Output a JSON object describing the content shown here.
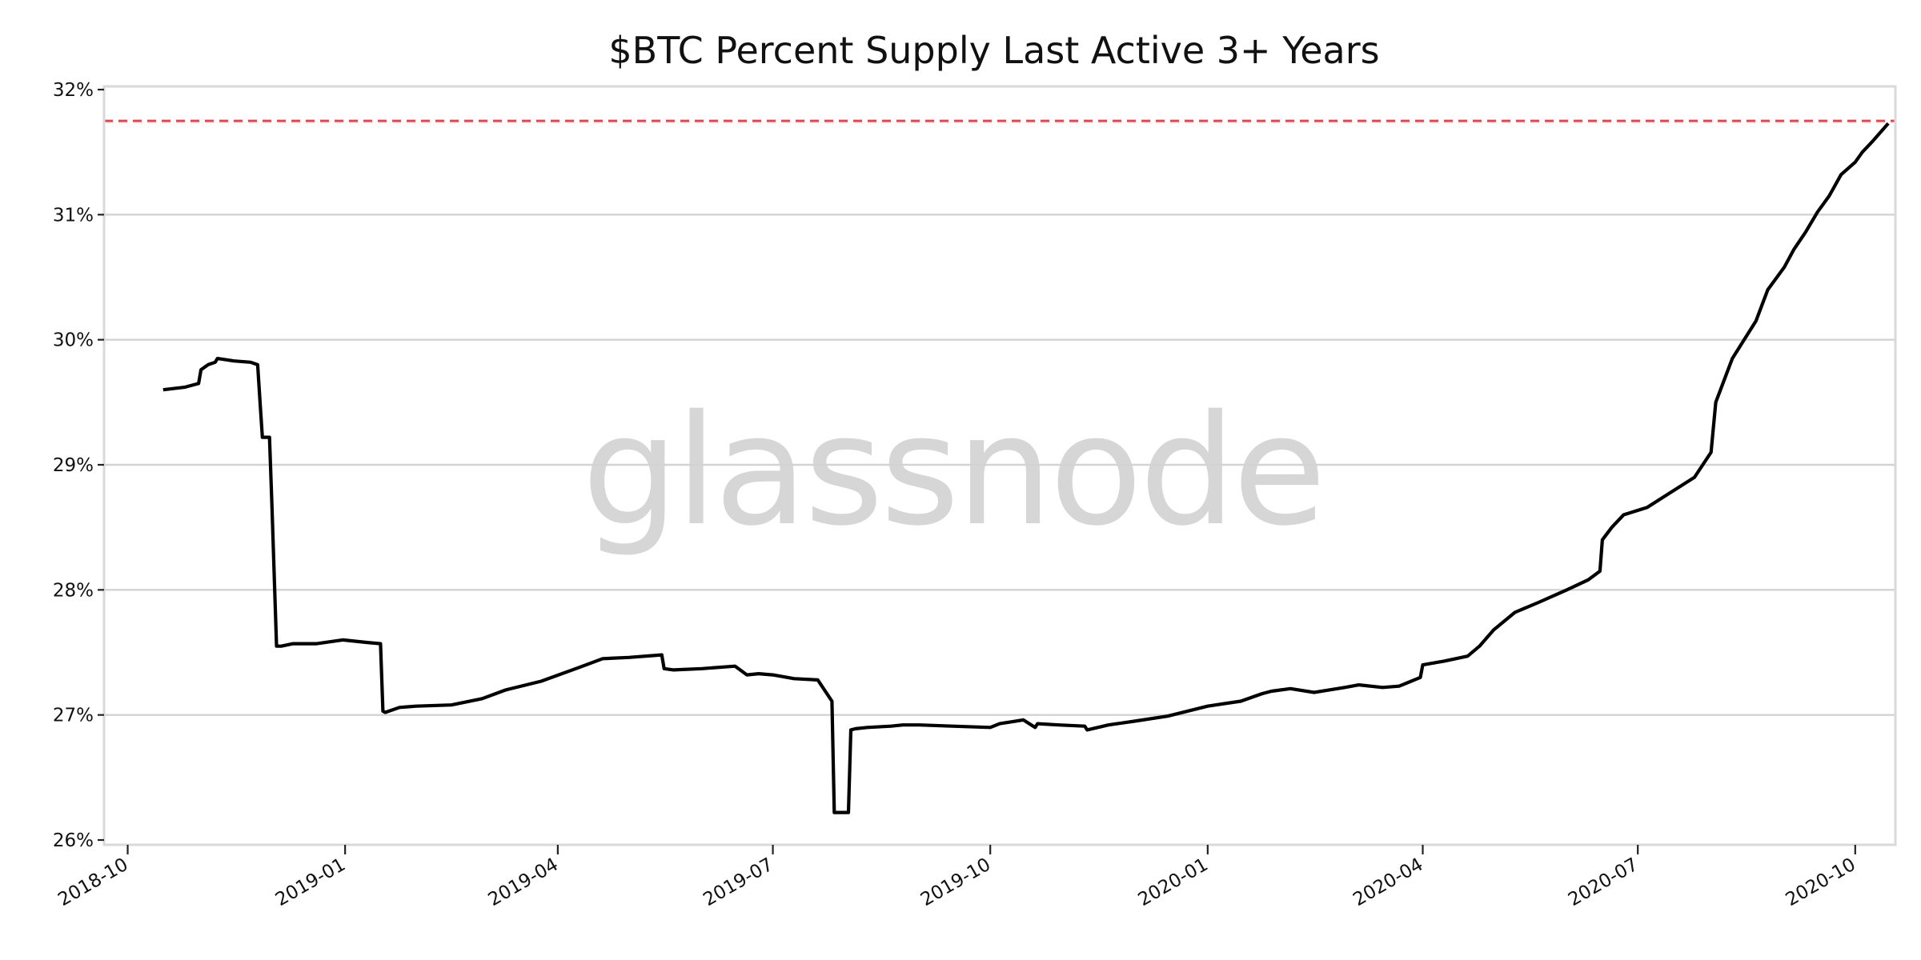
{
  "chart_data": {
    "type": "line",
    "title": "$BTC Percent Supply Last Active 3+ Years",
    "xlabel": "",
    "ylabel": "",
    "watermark": "glassnode",
    "x_type": "date",
    "xlim": [
      "2018-09-21",
      "2020-10-18"
    ],
    "ylim": [
      26,
      32
    ],
    "yticks": [
      26,
      27,
      28,
      29,
      30,
      31,
      32
    ],
    "ytick_labels": [
      "26%",
      "27%",
      "28%",
      "29%",
      "30%",
      "31%",
      "32%"
    ],
    "xticks": [
      "2018-10-01",
      "2019-01-01",
      "2019-04-01",
      "2019-07-01",
      "2019-10-01",
      "2020-01-01",
      "2020-04-01",
      "2020-07-01",
      "2020-10-01"
    ],
    "xtick_labels": [
      "2018-10",
      "2019-01",
      "2019-04",
      "2019-07",
      "2019-10",
      "2020-01",
      "2020-04",
      "2020-07",
      "2020-10"
    ],
    "grid": "horizontal",
    "reference_line": {
      "y": 31.75,
      "color": "#e8434a",
      "style": "dashed"
    },
    "line_color": "#000000",
    "series": [
      {
        "x": [
          "2018-10-16",
          "2018-10-25",
          "2018-10-31",
          "2018-11-01",
          "2018-11-04",
          "2018-11-07",
          "2018-11-08",
          "2018-11-15",
          "2018-11-22",
          "2018-11-25",
          "2018-11-26",
          "2018-11-27",
          "2018-11-30",
          "2018-12-01",
          "2018-12-03",
          "2018-12-05",
          "2018-12-10",
          "2018-12-20",
          "2018-12-31",
          "2019-01-10",
          "2019-01-16",
          "2019-01-17",
          "2019-01-18",
          "2019-01-24",
          "2019-01-31",
          "2019-02-15",
          "2019-02-28",
          "2019-03-10",
          "2019-03-25",
          "2019-04-10",
          "2019-04-20",
          "2019-05-01",
          "2019-05-15",
          "2019-05-16",
          "2019-05-20",
          "2019-06-01",
          "2019-06-15",
          "2019-06-20",
          "2019-06-25",
          "2019-07-01",
          "2019-07-10",
          "2019-07-20",
          "2019-07-26",
          "2019-07-27",
          "2019-08-02",
          "2019-08-03",
          "2019-08-05",
          "2019-08-10",
          "2019-08-20",
          "2019-08-25",
          "2019-09-01",
          "2019-09-15",
          "2019-10-01",
          "2019-10-05",
          "2019-10-15",
          "2019-10-20",
          "2019-10-21",
          "2019-10-30",
          "2019-11-10",
          "2019-11-11",
          "2019-11-20",
          "2019-12-01",
          "2019-12-15",
          "2020-01-01",
          "2020-01-15",
          "2020-01-24",
          "2020-01-28",
          "2020-02-05",
          "2020-02-15",
          "2020-02-28",
          "2020-03-05",
          "2020-03-15",
          "2020-03-22",
          "2020-03-31",
          "2020-04-01",
          "2020-04-10",
          "2020-04-20",
          "2020-04-25",
          "2020-05-01",
          "2020-05-10",
          "2020-05-20",
          "2020-06-01",
          "2020-06-10",
          "2020-06-15",
          "2020-06-16",
          "2020-06-20",
          "2020-06-25",
          "2020-07-05",
          "2020-07-15",
          "2020-07-25",
          "2020-08-01",
          "2020-08-03",
          "2020-08-05",
          "2020-08-10",
          "2020-08-15",
          "2020-08-20",
          "2020-08-25",
          "2020-09-01",
          "2020-09-05",
          "2020-09-10",
          "2020-09-15",
          "2020-09-20",
          "2020-09-25",
          "2020-10-01",
          "2020-10-04",
          "2020-10-08",
          "2020-10-15"
        ],
        "y": [
          29.6,
          29.62,
          29.65,
          29.76,
          29.8,
          29.82,
          29.85,
          29.83,
          29.82,
          29.8,
          29.5,
          29.22,
          29.22,
          28.7,
          27.55,
          27.55,
          27.57,
          27.57,
          27.6,
          27.58,
          27.57,
          27.03,
          27.02,
          27.06,
          27.07,
          27.08,
          27.13,
          27.2,
          27.27,
          27.38,
          27.45,
          27.46,
          27.48,
          27.37,
          27.36,
          27.37,
          27.39,
          27.32,
          27.33,
          27.32,
          27.29,
          27.28,
          27.11,
          26.22,
          26.22,
          26.88,
          26.89,
          26.9,
          26.91,
          26.92,
          26.92,
          26.91,
          26.9,
          26.93,
          26.96,
          26.9,
          26.93,
          26.92,
          26.91,
          26.88,
          26.92,
          26.95,
          26.99,
          27.07,
          27.11,
          27.17,
          27.19,
          27.21,
          27.18,
          27.22,
          27.24,
          27.22,
          27.23,
          27.3,
          27.4,
          27.43,
          27.47,
          27.55,
          27.68,
          27.82,
          27.9,
          28.0,
          28.08,
          28.15,
          28.4,
          28.5,
          28.6,
          28.66,
          28.78,
          28.9,
          29.1,
          29.5,
          29.6,
          29.85,
          30.0,
          30.15,
          30.4,
          30.58,
          30.72,
          30.86,
          31.02,
          31.15,
          31.32,
          31.42,
          31.5,
          31.58,
          31.73
        ]
      }
    ]
  }
}
